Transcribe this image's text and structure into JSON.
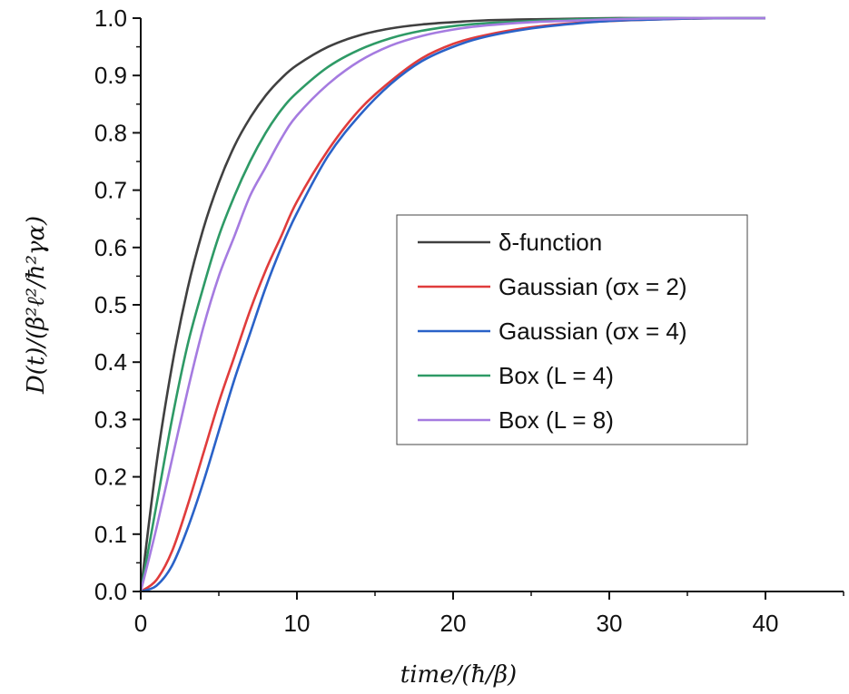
{
  "chart_data": {
    "type": "line",
    "xlabel": "time/(ħ/β)",
    "ylabel": "D(t)/(β²ℓ²/ħ²γα)",
    "xlim": [
      0,
      45
    ],
    "ylim": [
      0.0,
      1.0
    ],
    "x_ticks": [
      "0",
      "10",
      "20",
      "30",
      "40"
    ],
    "y_ticks": [
      "0.0",
      "0.1",
      "0.2",
      "0.3",
      "0.4",
      "0.5",
      "0.6",
      "0.7",
      "0.8",
      "0.9",
      "1.0"
    ],
    "grid": false,
    "legend_position": "center-right",
    "x": [
      0,
      1,
      2,
      3,
      4,
      5,
      6,
      7,
      8,
      9,
      10,
      12,
      14,
      16,
      18,
      20,
      22,
      25,
      28,
      30,
      32,
      35,
      38,
      40
    ],
    "series": [
      {
        "name": "δ-function",
        "color": "#404040",
        "values": [
          0.0,
          0.221,
          0.393,
          0.528,
          0.632,
          0.713,
          0.777,
          0.826,
          0.865,
          0.895,
          0.918,
          0.95,
          0.97,
          0.982,
          0.989,
          0.993,
          0.996,
          0.998,
          0.999,
          1.0,
          1.0,
          1.0,
          1.0,
          1.0
        ]
      },
      {
        "name": "Gaussian (σx = 2)",
        "color": "#e03c3c",
        "values": [
          0.0,
          0.02,
          0.07,
          0.15,
          0.24,
          0.33,
          0.41,
          0.49,
          0.56,
          0.62,
          0.68,
          0.77,
          0.84,
          0.89,
          0.93,
          0.955,
          0.97,
          0.984,
          0.992,
          0.995,
          0.997,
          0.999,
          1.0,
          1.0
        ]
      },
      {
        "name": "Gaussian (σx = 4)",
        "color": "#2a62c8",
        "values": [
          0.0,
          0.01,
          0.045,
          0.11,
          0.19,
          0.28,
          0.37,
          0.45,
          0.53,
          0.6,
          0.66,
          0.76,
          0.83,
          0.885,
          0.925,
          0.95,
          0.967,
          0.982,
          0.991,
          0.995,
          0.997,
          0.999,
          1.0,
          1.0
        ]
      },
      {
        "name": "Box (L = 4)",
        "color": "#2e9a66",
        "values": [
          0.0,
          0.15,
          0.3,
          0.43,
          0.53,
          0.62,
          0.69,
          0.75,
          0.8,
          0.84,
          0.87,
          0.915,
          0.945,
          0.965,
          0.978,
          0.986,
          0.991,
          0.995,
          0.998,
          0.999,
          1.0,
          1.0,
          1.0,
          1.0
        ]
      },
      {
        "name": "Box (L = 8)",
        "color": "#a57be0",
        "values": [
          0.0,
          0.11,
          0.23,
          0.35,
          0.46,
          0.55,
          0.62,
          0.69,
          0.74,
          0.79,
          0.83,
          0.885,
          0.925,
          0.952,
          0.969,
          0.98,
          0.987,
          0.993,
          0.996,
          0.998,
          0.999,
          1.0,
          1.0,
          1.0
        ]
      }
    ]
  }
}
